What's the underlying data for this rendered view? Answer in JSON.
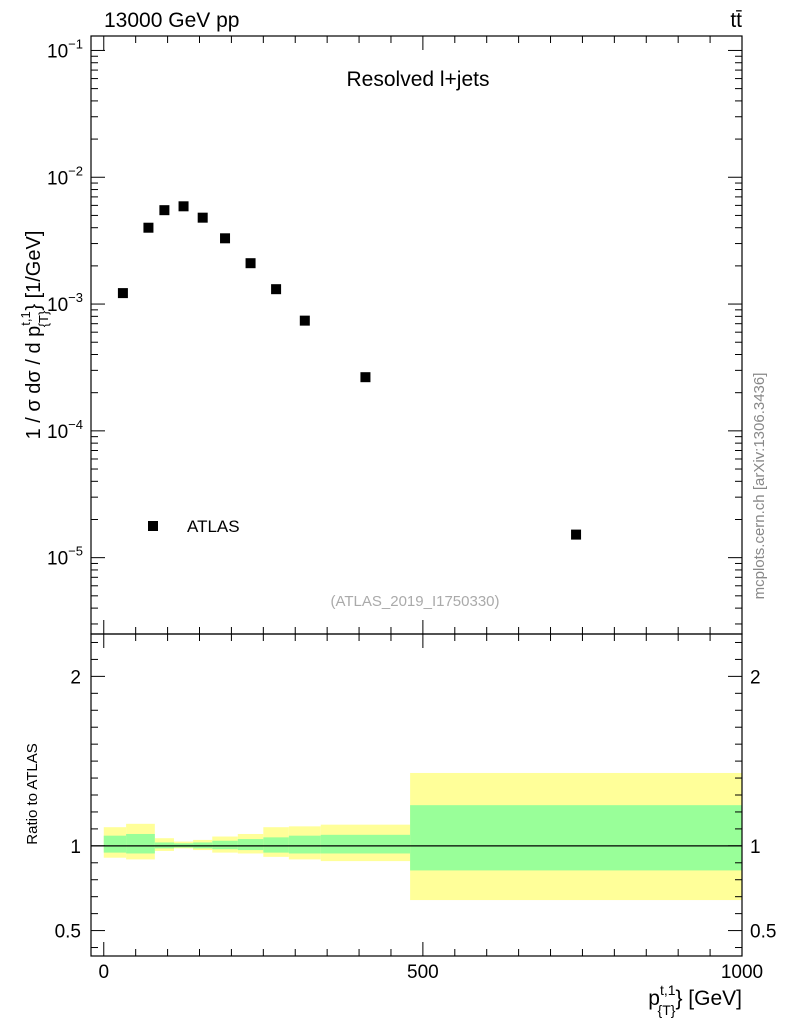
{
  "header": {
    "energy_label": "13000 GeV pp",
    "process": "tt̄"
  },
  "watermark": "mcplots.cern.ch [arXiv:1306.3436]",
  "chart_data": [
    {
      "type": "scatter",
      "panel": "main",
      "title": "Resolved l+jets",
      "analysis_id": "(ATLAS_2019_I1750330)",
      "ylabel": "1 / σ dσ / d p{T}t,1 [1/GeV]",
      "ylabel_parts": {
        "main": "1 / σ dσ / d p",
        "sup": "t,1",
        "sub": "{T}",
        "tail": "} [1/GeV]"
      },
      "yscale": "log",
      "ylim": [
        2.5e-06,
        0.13
      ],
      "xlim": [
        -20,
        1000
      ],
      "ytick_labels": [
        {
          "value": 1e-05,
          "base": "10",
          "exp": "−5"
        },
        {
          "value": 0.0001,
          "base": "10",
          "exp": "−4"
        },
        {
          "value": 0.001,
          "base": "10",
          "exp": "−3"
        },
        {
          "value": 0.01,
          "base": "10",
          "exp": "−2"
        },
        {
          "value": 0.1,
          "base": "10",
          "exp": "−1"
        }
      ],
      "legend": {
        "label": "ATLAS",
        "position": "bottom-left"
      },
      "series": [
        {
          "name": "ATLAS",
          "points": [
            {
              "x": 30,
              "y": 0.00122
            },
            {
              "x": 70,
              "y": 0.004
            },
            {
              "x": 95,
              "y": 0.0055
            },
            {
              "x": 125,
              "y": 0.0059
            },
            {
              "x": 155,
              "y": 0.0048
            },
            {
              "x": 190,
              "y": 0.0033
            },
            {
              "x": 230,
              "y": 0.0021
            },
            {
              "x": 270,
              "y": 0.00131
            },
            {
              "x": 315,
              "y": 0.00074
            },
            {
              "x": 410,
              "y": 0.000265
            },
            {
              "x": 740,
              "y": 1.52e-05
            }
          ]
        }
      ]
    },
    {
      "type": "area",
      "panel": "ratio",
      "ylabel": "Ratio to ATLAS",
      "xlabel": "p{T}t,1 [GeV]",
      "xlabel_parts": {
        "main": "p",
        "sup": "t,1",
        "sub": "{T}",
        "tail": "} [GeV]"
      },
      "xlim": [
        -20,
        1000
      ],
      "ylim": [
        0.35,
        2.25
      ],
      "xtick_labels": [
        "0",
        "500",
        "1000"
      ],
      "xtick_values": [
        0,
        500,
        1000
      ],
      "ytick_labels": [
        "0.5",
        "1",
        "2"
      ],
      "ytick_values": [
        0.5,
        1,
        2
      ],
      "reference_line": 1,
      "bands": {
        "bin_edges": [
          0,
          35,
          80,
          110,
          140,
          170,
          210,
          250,
          290,
          340,
          480,
          1000
        ],
        "outer": {
          "color": "#ffff99",
          "low": [
            0.93,
            0.92,
            0.97,
            0.985,
            0.975,
            0.96,
            0.955,
            0.935,
            0.92,
            0.91,
            0.68
          ],
          "high": [
            1.11,
            1.13,
            1.045,
            1.025,
            1.035,
            1.055,
            1.07,
            1.11,
            1.115,
            1.125,
            1.43
          ]
        },
        "inner": {
          "color": "#99ff99",
          "low": [
            0.96,
            0.955,
            0.985,
            0.99,
            0.985,
            0.98,
            0.975,
            0.96,
            0.955,
            0.955,
            0.855
          ],
          "high": [
            1.06,
            1.07,
            1.02,
            1.015,
            1.02,
            1.03,
            1.04,
            1.05,
            1.06,
            1.065,
            1.24
          ]
        }
      }
    }
  ]
}
